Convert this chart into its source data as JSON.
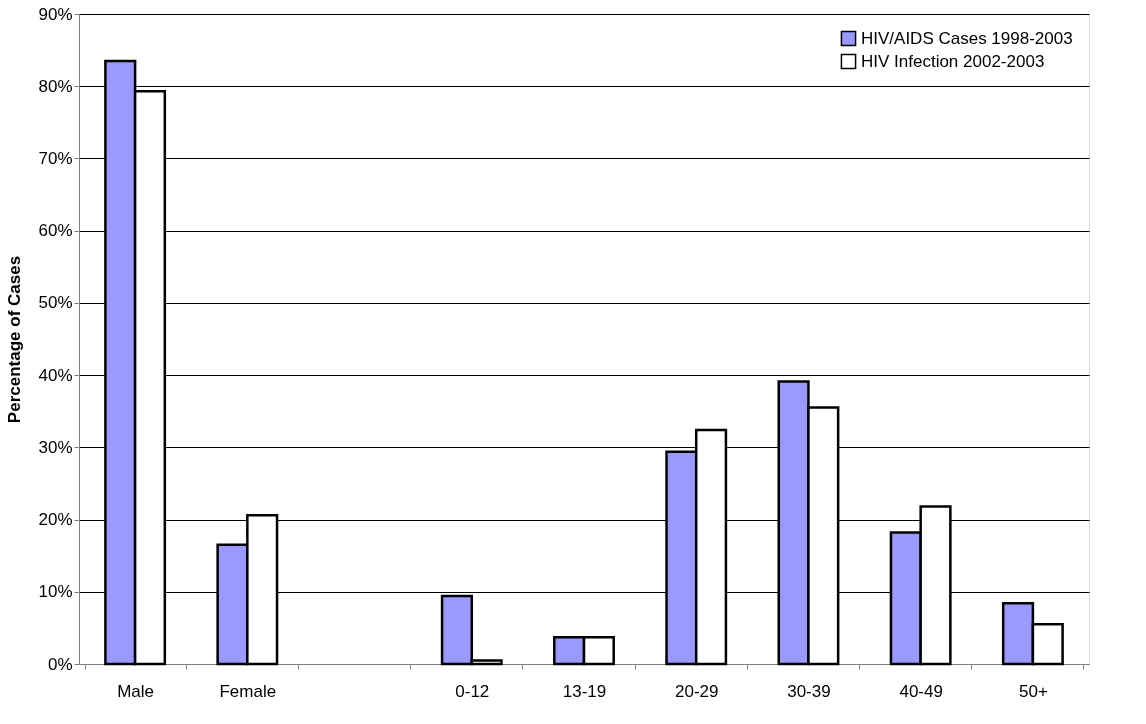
{
  "chart_data": {
    "type": "bar",
    "ylabel": "Percentage of Cases",
    "categories": [
      "Male",
      "Female",
      null,
      "0-12",
      "13-19",
      "20-29",
      "30-39",
      "40-49",
      "50+"
    ],
    "series": [
      {
        "name": "HIV/AIDS Cases 1998-2003",
        "color": "#9999ff",
        "values": [
          83.5,
          16.5,
          null,
          9.4,
          3.7,
          29.4,
          39.1,
          18.2,
          8.4
        ]
      },
      {
        "name": "HIV Infection 2002-2003",
        "color": "#ffffff",
        "values": [
          79.3,
          20.6,
          null,
          0.5,
          3.7,
          32.4,
          35.5,
          21.8,
          5.5
        ]
      }
    ],
    "ylim": [
      0,
      90
    ],
    "yticks": [
      {
        "value": 0,
        "label": "0%"
      },
      {
        "value": 10,
        "label": "10%"
      },
      {
        "value": 20,
        "label": "20%"
      },
      {
        "value": 30,
        "label": "30%"
      },
      {
        "value": 40,
        "label": "40%"
      },
      {
        "value": 50,
        "label": "50%"
      },
      {
        "value": 60,
        "label": "60%"
      },
      {
        "value": 70,
        "label": "70%"
      },
      {
        "value": 80,
        "label": "80%"
      },
      {
        "value": 90,
        "label": "90%"
      }
    ],
    "grid": "y",
    "legend": "top right"
  }
}
